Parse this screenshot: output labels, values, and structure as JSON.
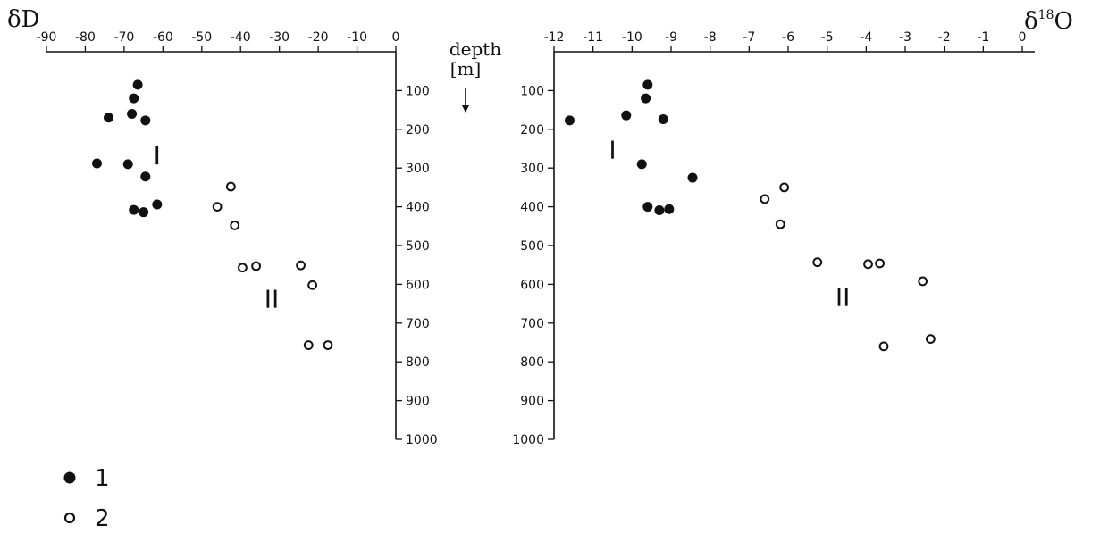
{
  "chart_data": [
    {
      "type": "scatter",
      "title_main": "δD",
      "title_sup": "",
      "x_ticks": [
        -90,
        -80,
        -70,
        -60,
        -50,
        -40,
        -30,
        -20,
        -10,
        0
      ],
      "xlim": [
        -90,
        0
      ],
      "ylim": [
        0,
        1000
      ],
      "y_ticks": [
        100,
        200,
        300,
        400,
        500,
        600,
        700,
        800,
        900,
        1000
      ],
      "y_axis_title": [
        "depth",
        "[m]"
      ],
      "group_labels": [
        {
          "text": "I",
          "x": -61.5,
          "y": 290
        },
        {
          "text": "II",
          "x": -32,
          "y": 660
        }
      ],
      "series": [
        {
          "name": "1",
          "marker": "filled",
          "points": [
            [
              -66.5,
              85
            ],
            [
              -67.5,
              120
            ],
            [
              -74,
              170
            ],
            [
              -68,
              160
            ],
            [
              -64.5,
              177
            ],
            [
              -77,
              288
            ],
            [
              -69,
              290
            ],
            [
              -64.5,
              322
            ],
            [
              -61.5,
              394
            ],
            [
              -67.5,
              408
            ],
            [
              -65,
              414
            ]
          ]
        },
        {
          "name": "2",
          "marker": "open",
          "points": [
            [
              -42.5,
              348
            ],
            [
              -46,
              400
            ],
            [
              -41.5,
              448
            ],
            [
              -39.5,
              557
            ],
            [
              -36,
              553
            ],
            [
              -24.5,
              551
            ],
            [
              -21.5,
              602
            ],
            [
              -22.5,
              757
            ],
            [
              -17.5,
              757
            ]
          ]
        }
      ]
    },
    {
      "type": "scatter",
      "title_main": "δ",
      "title_sup": "18",
      "title_end": "O",
      "x_ticks": [
        -12,
        -11,
        -10,
        -9,
        -8,
        -7,
        -6,
        -5,
        -4,
        -3,
        -2,
        -1,
        0
      ],
      "xlim": [
        -12,
        0
      ],
      "ylim": [
        0,
        1000
      ],
      "y_ticks": [
        100,
        200,
        300,
        400,
        500,
        600,
        700,
        800,
        900,
        1000
      ],
      "group_labels": [
        {
          "text": "I",
          "x": -10.5,
          "y": 275
        },
        {
          "text": "II",
          "x": -4.6,
          "y": 655
        }
      ],
      "series": [
        {
          "name": "1",
          "marker": "filled",
          "points": [
            [
              -11.6,
              177
            ],
            [
              -9.6,
              85
            ],
            [
              -10.15,
              164
            ],
            [
              -9.65,
              120
            ],
            [
              -9.2,
              174
            ],
            [
              -9.75,
              290
            ],
            [
              -8.45,
              325
            ],
            [
              -9.6,
              400
            ],
            [
              -9.3,
              409
            ],
            [
              -9.05,
              406
            ]
          ]
        },
        {
          "name": "2",
          "marker": "open",
          "points": [
            [
              -6.6,
              380
            ],
            [
              -6.1,
              350
            ],
            [
              -6.2,
              445
            ],
            [
              -5.25,
              543
            ],
            [
              -3.95,
              548
            ],
            [
              -3.65,
              546
            ],
            [
              -2.55,
              592
            ],
            [
              -2.35,
              741
            ],
            [
              -3.55,
              760
            ]
          ]
        }
      ]
    }
  ],
  "legend": [
    {
      "marker": "filled",
      "label": "1"
    },
    {
      "marker": "open",
      "label": "2"
    }
  ]
}
